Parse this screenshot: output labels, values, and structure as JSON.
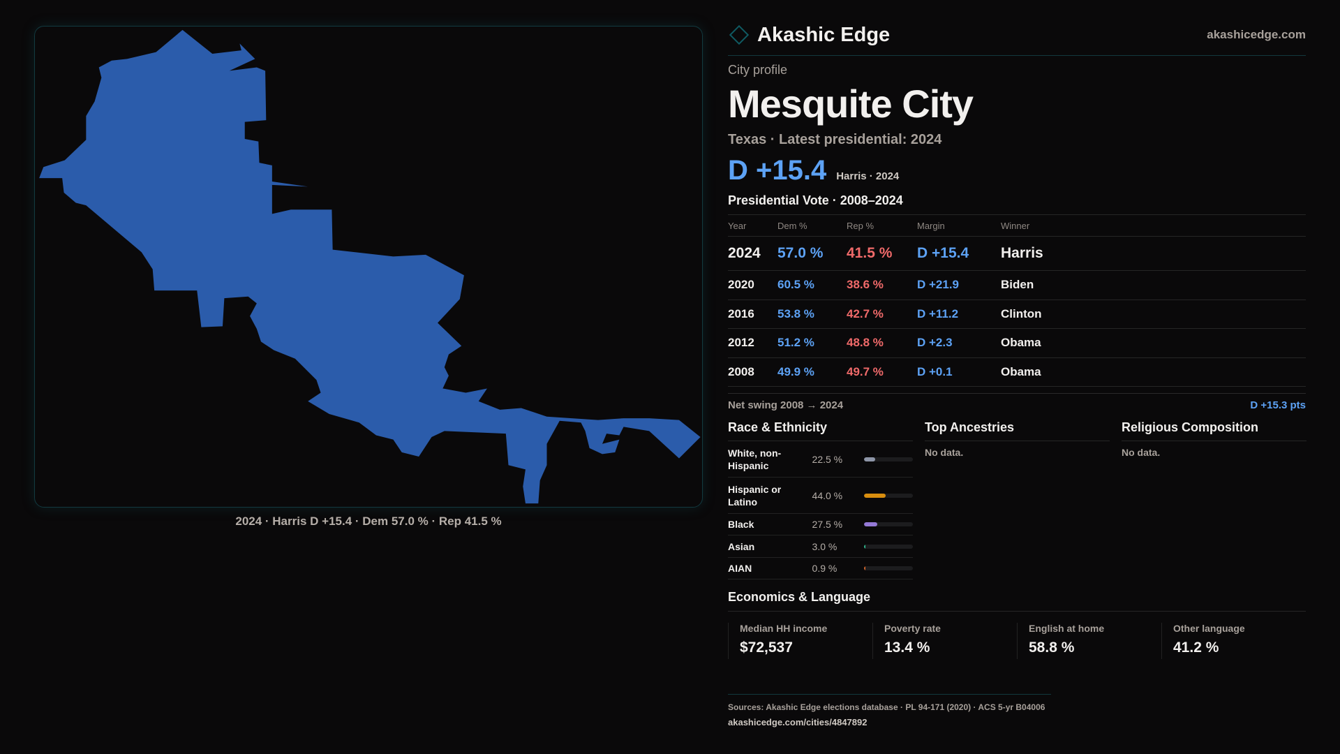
{
  "map": {
    "caption": "2024 · Harris D +15.4 · Dem 57.0 % · Rep 41.5 %",
    "fill": "#2b5cab"
  },
  "header": {
    "brand": "Akashic Edge",
    "site": "akashicedge.com"
  },
  "profile": {
    "kicker": "City profile",
    "title": "Mesquite City",
    "subtitle": "Texas · Latest presidential: 2024",
    "margin": "D +15.4",
    "margin_note": "Harris · 2024"
  },
  "vote": {
    "title": "Presidential Vote · 2008–2024",
    "columns": [
      "Year",
      "Dem %",
      "Rep %",
      "Margin",
      "Winner"
    ],
    "rows": [
      {
        "year": "2024",
        "dem": "57.0 %",
        "rep": "41.5 %",
        "margin": "D +15.4",
        "winner": "Harris"
      },
      {
        "year": "2020",
        "dem": "60.5 %",
        "rep": "38.6 %",
        "margin": "D +21.9",
        "winner": "Biden"
      },
      {
        "year": "2016",
        "dem": "53.8 %",
        "rep": "42.7 %",
        "margin": "D +11.2",
        "winner": "Clinton"
      },
      {
        "year": "2012",
        "dem": "51.2 %",
        "rep": "48.8 %",
        "margin": "D +2.3",
        "winner": "Obama"
      },
      {
        "year": "2008",
        "dem": "49.9 %",
        "rep": "49.7 %",
        "margin": "D +0.1",
        "winner": "Obama"
      }
    ],
    "swing_label": "Net swing 2008 → 2024",
    "swing_value": "D +15.3 pts"
  },
  "race": {
    "title": "Race & Ethnicity",
    "rows": [
      {
        "label": "White, non-Hispanic",
        "pct": "22.5 %",
        "value": 22.5,
        "color": "#8e96a8"
      },
      {
        "label": "Hispanic or Latino",
        "pct": "44.0 %",
        "value": 44.0,
        "color": "#d98e0f"
      },
      {
        "label": "Black",
        "pct": "27.5 %",
        "value": 27.5,
        "color": "#9479d6"
      },
      {
        "label": "Asian",
        "pct": "3.0 %",
        "value": 3.0,
        "color": "#2fb38a"
      },
      {
        "label": "AIAN",
        "pct": "0.9 %",
        "value": 0.9,
        "color": "#d0642a"
      }
    ]
  },
  "ancestries": {
    "title": "Top Ancestries",
    "empty": "No data."
  },
  "religion": {
    "title": "Religious Composition",
    "empty": "No data."
  },
  "econ": {
    "title": "Economics & Language",
    "stats": [
      {
        "label": "Median HH income",
        "value": "$72,537"
      },
      {
        "label": "Poverty rate",
        "value": "13.4 %"
      },
      {
        "label": "English at home",
        "value": "58.8 %"
      },
      {
        "label": "Other language",
        "value": "41.2 %"
      }
    ]
  },
  "footer": {
    "sources": "Sources: Akashic Edge elections database · PL 94-171 (2020) · ACS 5-yr B04006",
    "url": "akashicedge.com/cities/4847892"
  }
}
